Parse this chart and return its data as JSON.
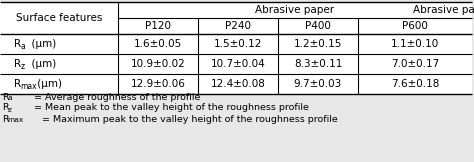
{
  "title_main": "Abrasive paper",
  "col_header_left": "Surface features",
  "col_headers": [
    "P120",
    "P240",
    "P400",
    "P600"
  ],
  "cell_data": [
    [
      "1.6±0.05",
      "1.5±0.12",
      "1.2±0.15",
      "1.1±0.10"
    ],
    [
      "10.9±0.02",
      "10.7±0.04",
      "8.3±0.11",
      "7.0±0.17"
    ],
    [
      "12.9±0.06",
      "12.4±0.08",
      "9.7±0.03",
      "7.6±0.18"
    ]
  ],
  "fn_defs": [
    "= Average roughness of the profile",
    "= Mean peak to the valley height of the roughness profile",
    "= Maximum peak to the valley height of the roughness profile"
  ],
  "bg_color": "#e8e8e8",
  "font_size": 7.5,
  "footnote_font_size": 6.8
}
